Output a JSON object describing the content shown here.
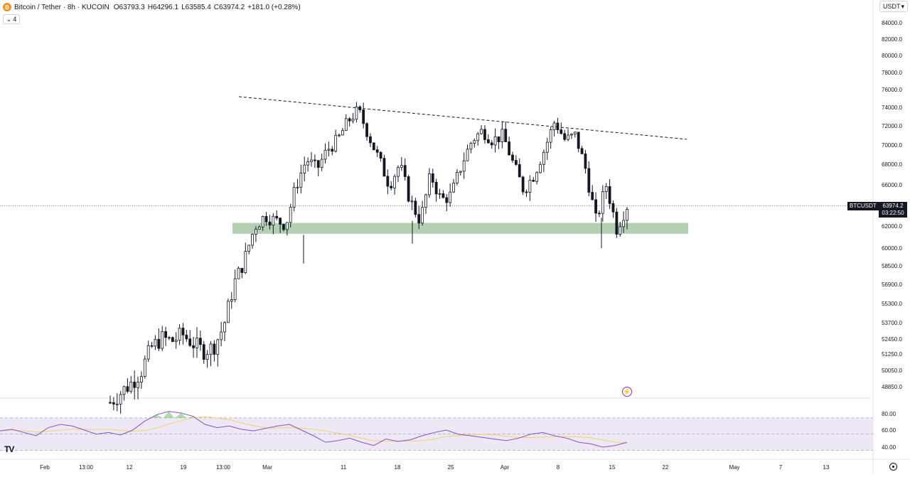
{
  "header": {
    "symbol_title": "Bitcoin / Tether · 8h · KUCOIN",
    "ohlc": {
      "open": "O63793.3",
      "high": "H64296.1",
      "low": "L63585.4",
      "close": "C63974.2",
      "change": "+181.0 (+0.28%)"
    },
    "indicator_count": "4",
    "coin_glyph": "B"
  },
  "currency": {
    "selected": "USDT"
  },
  "last_price": {
    "ticker": "BTCUSDT",
    "price": "63974.2",
    "countdown": "03:22:50"
  },
  "price_axis": {
    "labels": [
      "84000.0",
      "82000.0",
      "80000.0",
      "78000.0",
      "76000.0",
      "74000.0",
      "72000.0",
      "70000.0",
      "68000.0",
      "66000.0",
      "62000.0",
      "60000.0",
      "58500.0",
      "56900.0",
      "55300.0",
      "53700.0",
      "52450.0",
      "51250.0",
      "50050.0",
      "48850.0"
    ]
  },
  "rsi_axis": {
    "labels": [
      "80.00",
      "60.00",
      "40.00"
    ]
  },
  "time_axis": {
    "labels": [
      "Feb",
      "13:00",
      "12",
      "19",
      "13:00",
      "Mar",
      "11",
      "18",
      "25",
      "Apr",
      "8",
      "15",
      "22",
      "May",
      "7",
      "13"
    ]
  },
  "icons": {
    "logo": "TV",
    "replay": "⚡",
    "toggle": "⌄",
    "dropdown": "▾"
  },
  "colors": {
    "candle": "#131722",
    "support_zone": "#a5c9a6",
    "rsi_line": "#7e57c2",
    "rsi_ma": "#f2d36b",
    "rsi_band": "#ede7f6",
    "overbought_fill": "#4caf50",
    "trendline": "#131722"
  },
  "chart_data": {
    "type": "candlestick",
    "symbol": "BTCUSDT",
    "interval": "8h",
    "ylim": [
      47500,
      85000
    ],
    "rsi_ylim": [
      20,
      90
    ],
    "resistance_line": {
      "from_price": 75200,
      "to_price": 70600
    },
    "support_zone": {
      "from_price": 61300,
      "to_price": 62300
    },
    "current_price": 63974.2,
    "candles_close_path": [
      {
        "date": "Feb 26",
        "price": 47700
      },
      {
        "date": "Feb 27",
        "price": 48400
      },
      {
        "date": "Feb 28",
        "price": 49100
      },
      {
        "date": "Feb 29",
        "price": 50000
      },
      {
        "date": "Mar 1",
        "price": 51800
      },
      {
        "date": "Mar 2",
        "price": 52500
      },
      {
        "date": "Mar 3",
        "price": 52300
      },
      {
        "date": "Mar 4",
        "price": 52800
      },
      {
        "date": "Mar 5",
        "price": 52100
      },
      {
        "date": "Mar 6",
        "price": 51500
      },
      {
        "date": "Mar 7",
        "price": 51800
      },
      {
        "date": "Mar 8",
        "price": 53500
      },
      {
        "date": "Mar 9",
        "price": 57000
      },
      {
        "date": "Mar 10",
        "price": 59000
      },
      {
        "date": "Mar 11",
        "price": 62000
      },
      {
        "date": "Mar 12",
        "price": 63000
      },
      {
        "date": "Mar 13",
        "price": 62500
      },
      {
        "date": "Mar 14",
        "price": 62200
      },
      {
        "date": "Mar 15",
        "price": 66000
      },
      {
        "date": "Mar 16",
        "price": 68500
      },
      {
        "date": "Mar 17",
        "price": 67500
      },
      {
        "date": "Mar 18",
        "price": 69500
      },
      {
        "date": "Mar 19",
        "price": 70500
      },
      {
        "date": "Mar 20",
        "price": 72500
      },
      {
        "date": "Mar 21",
        "price": 73700
      },
      {
        "date": "Mar 22",
        "price": 71000
      },
      {
        "date": "Mar 23",
        "price": 68500
      },
      {
        "date": "Mar 24",
        "price": 66000
      },
      {
        "date": "Mar 25",
        "price": 68000
      },
      {
        "date": "Mar 26",
        "price": 64500
      },
      {
        "date": "Mar 27",
        "price": 62500
      },
      {
        "date": "Mar 28",
        "price": 67000
      },
      {
        "date": "Mar 29",
        "price": 64500
      },
      {
        "date": "Mar 30",
        "price": 65000
      },
      {
        "date": "Mar 31",
        "price": 68000
      },
      {
        "date": "Apr 1",
        "price": 70500
      },
      {
        "date": "Apr 2",
        "price": 71500
      },
      {
        "date": "Apr 3",
        "price": 70500
      },
      {
        "date": "Apr 4",
        "price": 71000
      },
      {
        "date": "Apr 5",
        "price": 68000
      },
      {
        "date": "Apr 6",
        "price": 65500
      },
      {
        "date": "Apr 7",
        "price": 67000
      },
      {
        "date": "Apr 8",
        "price": 69500
      },
      {
        "date": "Apr 9",
        "price": 72500
      },
      {
        "date": "Apr 10",
        "price": 70500
      },
      {
        "date": "Apr 11",
        "price": 71000
      },
      {
        "date": "Apr 12",
        "price": 67500
      },
      {
        "date": "Apr 13",
        "price": 62500
      },
      {
        "date": "Apr 14",
        "price": 66000
      },
      {
        "date": "Apr 15",
        "price": 61800
      },
      {
        "date": "Apr 16",
        "price": 63974.2
      }
    ],
    "rsi_values": [
      54,
      56,
      52,
      48,
      58,
      62,
      60,
      55,
      50,
      52,
      49,
      55,
      66,
      74,
      78,
      76,
      72,
      62,
      58,
      60,
      56,
      54,
      57,
      60,
      62,
      55,
      48,
      40,
      42,
      45,
      40,
      36,
      44,
      41,
      43,
      48,
      52,
      55,
      50,
      48,
      46,
      44,
      42,
      45,
      50,
      52,
      48,
      45,
      40,
      38,
      34,
      36,
      40
    ]
  }
}
